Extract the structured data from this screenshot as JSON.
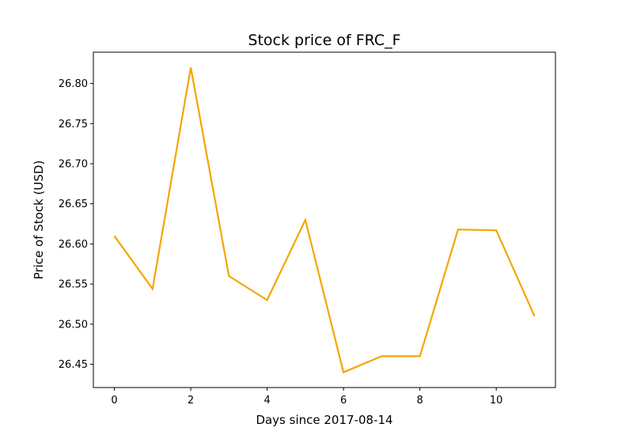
{
  "chart_data": {
    "type": "line",
    "title": "Stock price of FRC_F",
    "xlabel": "Days since 2017-08-14",
    "ylabel": "Price of Stock (USD)",
    "xlim": [
      -0.55,
      11.55
    ],
    "ylim": [
      26.421,
      26.839
    ],
    "x_ticks": [
      0,
      2,
      4,
      6,
      8,
      10
    ],
    "y_ticks": [
      26.45,
      26.5,
      26.55,
      26.6,
      26.65,
      26.7,
      26.75,
      26.8
    ],
    "y_tick_decimals": 2,
    "grid": false,
    "series": [
      {
        "color": "#f5a500",
        "x": [
          0,
          1,
          2,
          3,
          4,
          5,
          6,
          7,
          8,
          9,
          10,
          11
        ],
        "y": [
          26.61,
          26.544,
          26.82,
          26.56,
          26.53,
          26.63,
          26.44,
          26.46,
          26.46,
          26.618,
          26.617,
          26.51
        ]
      }
    ]
  }
}
